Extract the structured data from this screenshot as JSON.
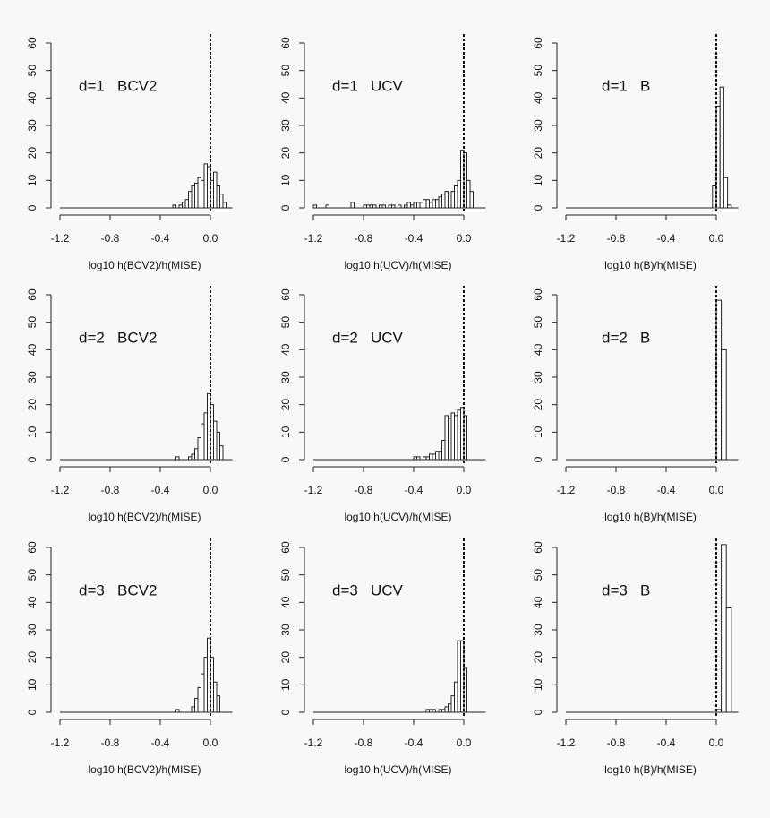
{
  "chart_data": [
    {
      "type": "histogram",
      "title": "d=1   BCV2",
      "xlabel": "log10 h(BCV2)/h(MISE)",
      "bins": [
        -1.2,
        -0.3,
        -0.275,
        -0.25,
        -0.225,
        -0.2,
        -0.175,
        -0.15,
        -0.125,
        -0.1,
        -0.075,
        -0.05,
        -0.025,
        0,
        0.025,
        0.05,
        0.075,
        0.1,
        0.125,
        0.175
      ],
      "counts": [
        0,
        1,
        0,
        1,
        2,
        3,
        6,
        8,
        9,
        11,
        10,
        16,
        15,
        10,
        13,
        8,
        5,
        2,
        0
      ],
      "color": "#ffffff",
      "vline": 0,
      "xlim": [
        -1.25,
        0.2
      ],
      "ylim": [
        0,
        60
      ],
      "xticks": [
        -1.2,
        -0.8,
        -0.4,
        {
          "value": 0,
          "label": "0.0"
        }
      ],
      "yticks": [
        0,
        10,
        20,
        30,
        40,
        50,
        60
      ]
    },
    {
      "type": "histogram",
      "title": "d=1   UCV",
      "xlabel": "log10 h(UCV)/h(MISE)",
      "bins": [
        -1.2,
        -1.175,
        -1.15,
        -1.125,
        -1.1,
        -1.075,
        -1.05,
        -1.025,
        -1,
        -0.975,
        -0.95,
        -0.925,
        -0.9,
        -0.875,
        -0.85,
        -0.825,
        -0.8,
        -0.775,
        -0.75,
        -0.725,
        -0.7,
        -0.675,
        -0.65,
        -0.625,
        -0.6,
        -0.575,
        -0.55,
        -0.525,
        -0.5,
        -0.475,
        -0.45,
        -0.425,
        -0.4,
        -0.375,
        -0.35,
        -0.325,
        -0.3,
        -0.275,
        -0.25,
        -0.225,
        -0.2,
        -0.175,
        -0.15,
        -0.125,
        -0.1,
        -0.075,
        -0.05,
        -0.025,
        0,
        0.025,
        0.05,
        0.075,
        0.175
      ],
      "counts": [
        1,
        0,
        0,
        0,
        1,
        0,
        0,
        0,
        0,
        0,
        0,
        0,
        2,
        0,
        0,
        0,
        1,
        1,
        1,
        1,
        0,
        1,
        1,
        0,
        1,
        1,
        0,
        1,
        0,
        1,
        2,
        1,
        2,
        2,
        2,
        3,
        3,
        2,
        3,
        3,
        4,
        5,
        6,
        5,
        6,
        8,
        10,
        21,
        20,
        10,
        6,
        0
      ],
      "color": "#ffffff",
      "vline": 0,
      "xlim": [
        -1.25,
        0.2
      ],
      "ylim": [
        0,
        60
      ],
      "xticks": [
        -1.2,
        -0.8,
        -0.4,
        {
          "value": 0,
          "label": "0.0"
        }
      ],
      "yticks": [
        0,
        10,
        20,
        30,
        40,
        50,
        60
      ]
    },
    {
      "type": "histogram",
      "title": "d=1   B",
      "xlabel": "log10 h(B)/h(MISE)",
      "bins": [
        -1.2,
        -0.03,
        0,
        0.03,
        0.06,
        0.09,
        0.12,
        0.175
      ],
      "counts": [
        0,
        8,
        37,
        44,
        11,
        1,
        0
      ],
      "color": "#ffffff",
      "vline": 0,
      "xlim": [
        -1.25,
        0.2
      ],
      "ylim": [
        0,
        60
      ],
      "xticks": [
        -1.2,
        -0.8,
        -0.4,
        {
          "value": 0,
          "label": "0.0"
        }
      ],
      "yticks": [
        0,
        10,
        20,
        30,
        40,
        50,
        60
      ]
    },
    {
      "type": "histogram",
      "title": "d=2   BCV2",
      "xlabel": "log10 h(BCV2)/h(MISE)",
      "bins": [
        -1.2,
        -0.275,
        -0.25,
        -0.225,
        -0.2,
        -0.175,
        -0.15,
        -0.125,
        -0.1,
        -0.075,
        -0.05,
        -0.025,
        0,
        0.025,
        0.05,
        0.075,
        0.1,
        0.175
      ],
      "counts": [
        0,
        1,
        0,
        0,
        0,
        1,
        2,
        4,
        8,
        13,
        17,
        24,
        20,
        14,
        10,
        5,
        0
      ],
      "color": "#ffffff",
      "vline": 0,
      "xlim": [
        -1.25,
        0.2
      ],
      "ylim": [
        0,
        60
      ],
      "xticks": [
        -1.2,
        -0.8,
        -0.4,
        {
          "value": 0,
          "label": "0.0"
        }
      ],
      "yticks": [
        0,
        10,
        20,
        30,
        40,
        50,
        60
      ]
    },
    {
      "type": "histogram",
      "title": "d=2   UCV",
      "xlabel": "log10 h(UCV)/h(MISE)",
      "bins": [
        -1.2,
        -0.4,
        -0.375,
        -0.35,
        -0.325,
        -0.3,
        -0.275,
        -0.25,
        -0.225,
        -0.2,
        -0.175,
        -0.15,
        -0.125,
        -0.1,
        -0.075,
        -0.05,
        -0.025,
        0,
        0.025,
        0.175
      ],
      "counts": [
        0,
        1,
        1,
        0,
        1,
        1,
        2,
        2,
        3,
        3,
        7,
        16,
        15,
        17,
        16,
        18,
        19,
        16,
        0
      ],
      "color": "#ffffff",
      "vline": 0,
      "xlim": [
        -1.25,
        0.2
      ],
      "ylim": [
        0,
        60
      ],
      "xticks": [
        -1.2,
        -0.8,
        -0.4,
        {
          "value": 0,
          "label": "0.0"
        }
      ],
      "yticks": [
        0,
        10,
        20,
        30,
        40,
        50,
        60
      ]
    },
    {
      "type": "histogram",
      "title": "d=2   B",
      "xlabel": "log10 h(B)/h(MISE)",
      "bins": [
        -1.2,
        0,
        0.04,
        0.08,
        0.175
      ],
      "counts": [
        0,
        58,
        40,
        0
      ],
      "color": "#ffffff",
      "vline": 0,
      "xlim": [
        -1.25,
        0.2
      ],
      "ylim": [
        0,
        60
      ],
      "xticks": [
        -1.2,
        -0.8,
        -0.4,
        {
          "value": 0,
          "label": "0.0"
        }
      ],
      "yticks": [
        0,
        10,
        20,
        30,
        40,
        50,
        60
      ]
    },
    {
      "type": "histogram",
      "title": "d=3   BCV2",
      "xlabel": "log10 h(BCV2)/h(MISE)",
      "bins": [
        -1.2,
        -0.275,
        -0.25,
        -0.225,
        -0.2,
        -0.175,
        -0.15,
        -0.125,
        -0.1,
        -0.075,
        -0.05,
        -0.025,
        0,
        0.025,
        0.05,
        0.075,
        0.175
      ],
      "counts": [
        0,
        1,
        0,
        0,
        0,
        0,
        2,
        5,
        9,
        14,
        20,
        27,
        20,
        11,
        6,
        0
      ],
      "color": "#ffffff",
      "vline": 0,
      "xlim": [
        -1.25,
        0.2
      ],
      "ylim": [
        0,
        60
      ],
      "xticks": [
        -1.2,
        -0.8,
        -0.4,
        {
          "value": 0,
          "label": "0.0"
        }
      ],
      "yticks": [
        0,
        10,
        20,
        30,
        40,
        50,
        60
      ]
    },
    {
      "type": "histogram",
      "title": "d=3   UCV",
      "xlabel": "log10 h(UCV)/h(MISE)",
      "bins": [
        -1.2,
        -0.3,
        -0.275,
        -0.25,
        -0.225,
        -0.2,
        -0.175,
        -0.15,
        -0.125,
        -0.1,
        -0.075,
        -0.05,
        -0.025,
        0,
        0.025,
        0.175
      ],
      "counts": [
        0,
        1,
        1,
        1,
        0,
        1,
        1,
        2,
        3,
        6,
        11,
        26,
        26,
        16,
        0
      ],
      "color": "#ffffff",
      "vline": 0,
      "xlim": [
        -1.25,
        0.2
      ],
      "ylim": [
        0,
        60
      ],
      "xticks": [
        -1.2,
        -0.8,
        -0.4,
        {
          "value": 0,
          "label": "0.0"
        }
      ],
      "yticks": [
        0,
        10,
        20,
        30,
        40,
        50,
        60
      ]
    },
    {
      "type": "histogram",
      "title": "d=3   B",
      "xlabel": "log10 h(B)/h(MISE)",
      "bins": [
        -1.2,
        0,
        0.04,
        0.08,
        0.12,
        0.175
      ],
      "counts": [
        0,
        1,
        61,
        38,
        0
      ],
      "color": "#ffffff",
      "vline": 0,
      "xlim": [
        -1.25,
        0.2
      ],
      "ylim": [
        0,
        60
      ],
      "xticks": [
        -1.2,
        -0.8,
        -0.4,
        {
          "value": 0,
          "label": "0.0"
        }
      ],
      "yticks": [
        0,
        10,
        20,
        30,
        40,
        50,
        60
      ]
    }
  ]
}
